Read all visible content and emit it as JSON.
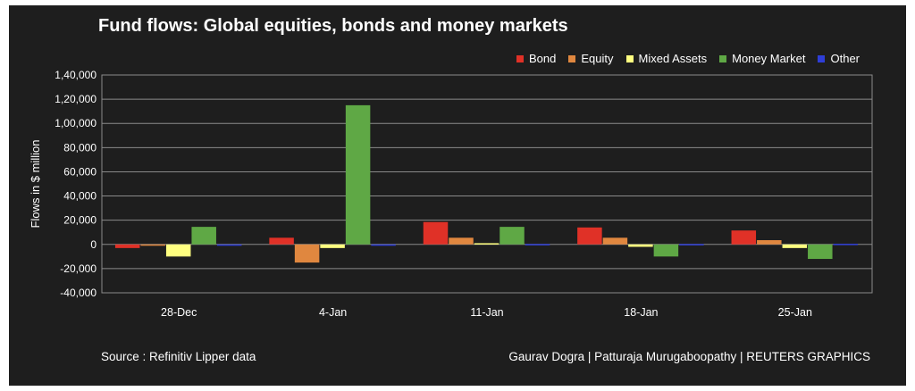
{
  "title": "Fund flows: Global equities, bonds and money markets",
  "source": "Source : Refinitiv Lipper data",
  "credit": "Gaurav Dogra | Patturaja Murugaboopathy | REUTERS GRAPHICS",
  "legend": [
    {
      "name": "Bond",
      "color": "#e03127"
    },
    {
      "name": "Equity",
      "color": "#e0873f"
    },
    {
      "name": "Mixed Assets",
      "color": "#ffff80"
    },
    {
      "name": "Money Market",
      "color": "#5fa845"
    },
    {
      "name": "Other",
      "color": "#2e3ed8"
    }
  ],
  "chart_data": {
    "type": "bar",
    "categories": [
      "28-Dec",
      "4-Jan",
      "11-Jan",
      "18-Jan",
      "25-Jan"
    ],
    "ylabel": "Flows in $ million",
    "xlabel": "",
    "ylim": [
      -40000,
      140000
    ],
    "yticks": [
      -40000,
      -20000,
      0,
      20000,
      40000,
      60000,
      80000,
      100000,
      120000,
      140000
    ],
    "ytick_labels": [
      "-40,000",
      "-20,000",
      "0",
      "20,000",
      "40,000",
      "60,000",
      "80,000",
      "1,00,000",
      "1,20,000",
      "1,40,000"
    ],
    "grid": true,
    "legend_position": "top-right",
    "series": [
      {
        "name": "Bond",
        "color": "#e03127",
        "values": [
          -3000,
          5500,
          18500,
          14000,
          11500
        ]
      },
      {
        "name": "Equity",
        "color": "#e0873f",
        "values": [
          -500,
          -15000,
          5500,
          5500,
          3500
        ]
      },
      {
        "name": "Mixed Assets",
        "color": "#ffff80",
        "values": [
          -10000,
          -3000,
          1000,
          -2000,
          -3000
        ]
      },
      {
        "name": "Money Market",
        "color": "#5fa845",
        "values": [
          14500,
          115000,
          14500,
          -10000,
          -12000
        ]
      },
      {
        "name": "Other",
        "color": "#2e3ed8",
        "values": [
          -500,
          -1000,
          300,
          300,
          500
        ]
      }
    ]
  }
}
